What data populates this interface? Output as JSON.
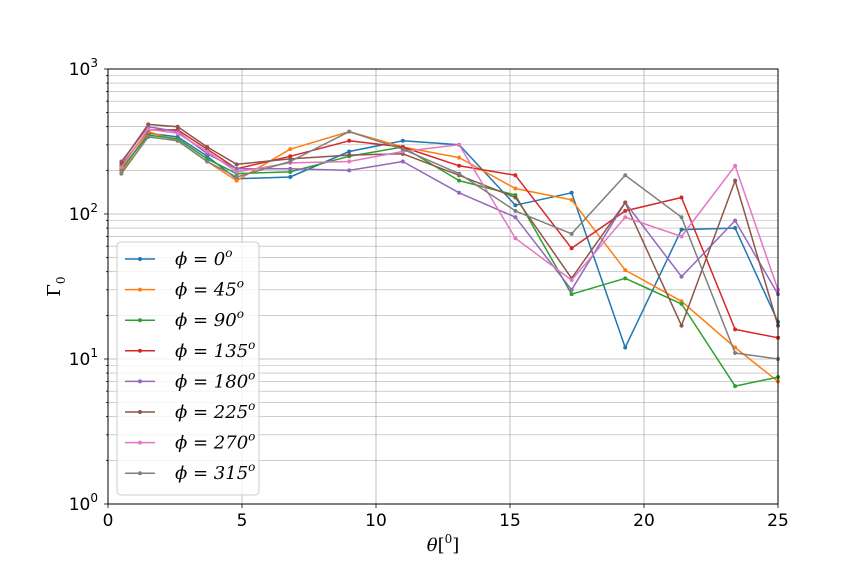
{
  "chart_data": {
    "type": "line",
    "title": "",
    "xlabel": "θ[0]",
    "ylabel": "Γ0",
    "xlim": [
      0,
      25
    ],
    "ylim": [
      1,
      1000
    ],
    "yscale": "log",
    "grid": true,
    "legend_loc": "lower-left",
    "x_ticks": [
      0,
      5,
      10,
      15,
      20,
      25
    ],
    "x_tick_labels": [
      "0",
      "5",
      "10",
      "15",
      "20",
      "25"
    ],
    "y_ticks": [
      1,
      10,
      100,
      1000
    ],
    "y_tick_bases": [
      "10",
      "10",
      "10",
      "10"
    ],
    "y_tick_exps": [
      "0",
      "1",
      "2",
      "3"
    ],
    "x": [
      0.5,
      1.5,
      2.6,
      3.7,
      4.8,
      6.8,
      9.0,
      11.0,
      13.1,
      15.2,
      17.3,
      19.3,
      21.4,
      23.4,
      25.0
    ],
    "series": [
      {
        "name": "ϕ=0°",
        "legend_base": "ϕ = 0",
        "legend_sup": "o",
        "color": "#1f77b4",
        "values": [
          200,
          360,
          340,
          250,
          175,
          180,
          270,
          320,
          300,
          115,
          140,
          12,
          78,
          80,
          18
        ]
      },
      {
        "name": "ϕ=45°",
        "legend_base": "ϕ = 45",
        "legend_sup": "o",
        "color": "#ff7f0e",
        "values": [
          195,
          370,
          320,
          230,
          170,
          280,
          370,
          290,
          245,
          150,
          125,
          41,
          25,
          12,
          7
        ]
      },
      {
        "name": "ϕ=90°",
        "legend_base": "ϕ = 90",
        "legend_sup": "o",
        "color": "#2ca02c",
        "values": [
          205,
          350,
          330,
          240,
          190,
          195,
          250,
          290,
          170,
          135,
          28,
          36,
          24,
          6.5,
          7.5
        ]
      },
      {
        "name": "ϕ=135°",
        "legend_base": "ϕ = 135",
        "legend_sup": "o",
        "color": "#d62728",
        "values": [
          215,
          380,
          380,
          280,
          205,
          250,
          320,
          290,
          215,
          185,
          58,
          105,
          130,
          16,
          14
        ]
      },
      {
        "name": "ϕ=180°",
        "legend_base": "ϕ = 180",
        "legend_sup": "o",
        "color": "#9467bd",
        "values": [
          230,
          400,
          370,
          260,
          205,
          205,
          200,
          230,
          140,
          95,
          30,
          120,
          37,
          90,
          28
        ]
      },
      {
        "name": "ϕ=225°",
        "legend_base": "ϕ = 225",
        "legend_sup": "o",
        "color": "#8c564b",
        "values": [
          225,
          415,
          400,
          290,
          220,
          240,
          255,
          260,
          185,
          130,
          36,
          120,
          17,
          170,
          17
        ]
      },
      {
        "name": "ϕ=270°",
        "legend_base": "ϕ = 270",
        "legend_sup": "o",
        "color": "#e377c2",
        "values": [
          210,
          385,
          360,
          270,
          195,
          225,
          230,
          270,
          300,
          68,
          35,
          95,
          70,
          215,
          30
        ]
      },
      {
        "name": "ϕ=315°",
        "legend_base": "ϕ = 315",
        "legend_sup": "o",
        "color": "#7f7f7f",
        "values": [
          190,
          340,
          320,
          230,
          180,
          230,
          370,
          280,
          190,
          105,
          73,
          185,
          95,
          11,
          10
        ]
      }
    ]
  }
}
